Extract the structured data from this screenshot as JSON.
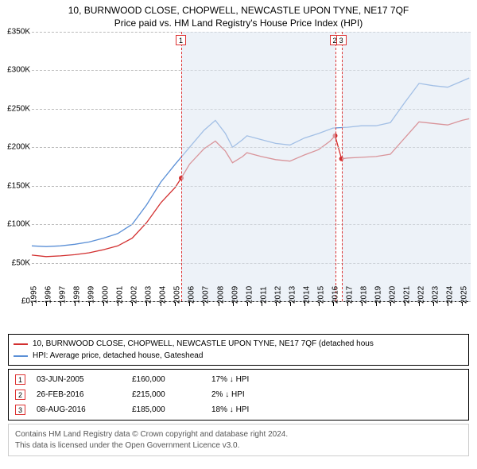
{
  "title": "10, BURNWOOD CLOSE, CHOPWELL, NEWCASTLE UPON TYNE, NE17 7QF",
  "subtitle": "Price paid vs. HM Land Registry's House Price Index (HPI)",
  "chart": {
    "type": "line",
    "xlim": [
      1995,
      2025.6
    ],
    "ylim": [
      0,
      350000
    ],
    "ytick_step": 50000,
    "ytick_labels": [
      "£0",
      "£50K",
      "£100K",
      "£150K",
      "£200K",
      "£250K",
      "£300K",
      "£350K"
    ],
    "xtick_step": 1,
    "xtick_labels": [
      "1995",
      "1996",
      "1997",
      "1998",
      "1999",
      "2000",
      "2001",
      "2002",
      "2003",
      "2004",
      "2005",
      "2006",
      "2007",
      "2008",
      "2009",
      "2010",
      "2011",
      "2012",
      "2013",
      "2014",
      "2015",
      "2016",
      "2017",
      "2018",
      "2019",
      "2020",
      "2021",
      "2022",
      "2023",
      "2024",
      "2025"
    ],
    "grid_color": "#bbbbbb",
    "background_color": "#ffffff",
    "shaded_ranges": [
      {
        "x0": 2005.42,
        "x1": 2016.15,
        "color": "#dfe8f2"
      },
      {
        "x0": 2016.6,
        "x1": 2025.6,
        "color": "#dfe8f2"
      }
    ],
    "series": [
      {
        "name": "hpi",
        "label": "HPI: Average price, detached house, Gateshead",
        "color": "#5a8fd6",
        "line_width": 1.3,
        "data": [
          [
            1995,
            72000
          ],
          [
            1996,
            71000
          ],
          [
            1997,
            72000
          ],
          [
            1998,
            74000
          ],
          [
            1999,
            77000
          ],
          [
            2000,
            82000
          ],
          [
            2001,
            88000
          ],
          [
            2002,
            100000
          ],
          [
            2003,
            125000
          ],
          [
            2004,
            155000
          ],
          [
            2005,
            178000
          ],
          [
            2006,
            200000
          ],
          [
            2007,
            222000
          ],
          [
            2007.8,
            235000
          ],
          [
            2008.5,
            218000
          ],
          [
            2009,
            200000
          ],
          [
            2009.7,
            210000
          ],
          [
            2010,
            215000
          ],
          [
            2011,
            210000
          ],
          [
            2012,
            205000
          ],
          [
            2013,
            203000
          ],
          [
            2014,
            212000
          ],
          [
            2015,
            218000
          ],
          [
            2016,
            225000
          ],
          [
            2017,
            226000
          ],
          [
            2018,
            228000
          ],
          [
            2019,
            228000
          ],
          [
            2020,
            232000
          ],
          [
            2021,
            258000
          ],
          [
            2022,
            283000
          ],
          [
            2023,
            280000
          ],
          [
            2024,
            278000
          ],
          [
            2025,
            286000
          ],
          [
            2025.5,
            290000
          ]
        ]
      },
      {
        "name": "prop",
        "label": "10, BURNWOOD CLOSE, CHOPWELL, NEWCASTLE UPON TYNE, NE17 7QF (detached house",
        "color": "#d22f2f",
        "line_width": 1.3,
        "data": [
          [
            1995,
            60000
          ],
          [
            1996,
            58000
          ],
          [
            1997,
            59000
          ],
          [
            1998,
            60500
          ],
          [
            1999,
            63000
          ],
          [
            2000,
            67000
          ],
          [
            2001,
            72000
          ],
          [
            2002,
            82000
          ],
          [
            2003,
            102000
          ],
          [
            2004,
            128000
          ],
          [
            2005,
            148000
          ],
          [
            2005.42,
            160000
          ],
          [
            2006,
            178000
          ],
          [
            2007,
            198000
          ],
          [
            2007.8,
            208000
          ],
          [
            2008.5,
            195000
          ],
          [
            2009,
            180000
          ],
          [
            2009.7,
            188000
          ],
          [
            2010,
            193000
          ],
          [
            2011,
            188000
          ],
          [
            2012,
            184000
          ],
          [
            2013,
            182000
          ],
          [
            2014,
            190000
          ],
          [
            2015,
            197000
          ],
          [
            2015.8,
            208000
          ],
          [
            2016.15,
            215000
          ],
          [
            2016.6,
            185000
          ],
          [
            2017,
            186000
          ],
          [
            2018,
            187000
          ],
          [
            2019,
            188000
          ],
          [
            2020,
            191000
          ],
          [
            2021,
            212000
          ],
          [
            2022,
            233000
          ],
          [
            2023,
            231000
          ],
          [
            2024,
            229000
          ],
          [
            2025,
            235000
          ],
          [
            2025.5,
            237000
          ]
        ]
      }
    ],
    "sale_markers": [
      {
        "label": "1",
        "x": 2005.42,
        "y": 160000
      },
      {
        "label": "2",
        "x": 2016.15,
        "y": 215000
      },
      {
        "label": "3",
        "x": 2016.6,
        "y": 185000
      }
    ],
    "point_color": "#d22f2f",
    "marker_border_color": "#d22f2f"
  },
  "legend": {
    "items": [
      {
        "color": "#d22f2f",
        "text": "10, BURNWOOD CLOSE, CHOPWELL, NEWCASTLE UPON TYNE, NE17 7QF (detached hous"
      },
      {
        "color": "#5a8fd6",
        "text": "HPI: Average price, detached house, Gateshead"
      }
    ]
  },
  "events": [
    {
      "n": "1",
      "date": "03-JUN-2005",
      "price": "£160,000",
      "pct": "17% ↓ HPI"
    },
    {
      "n": "2",
      "date": "26-FEB-2016",
      "price": "£215,000",
      "pct": "2% ↓ HPI"
    },
    {
      "n": "3",
      "date": "08-AUG-2016",
      "price": "£185,000",
      "pct": "18% ↓ HPI"
    }
  ],
  "disclaimer": {
    "line1": "Contains HM Land Registry data © Crown copyright and database right 2024.",
    "line2": "This data is licensed under the Open Government Licence v3.0."
  }
}
